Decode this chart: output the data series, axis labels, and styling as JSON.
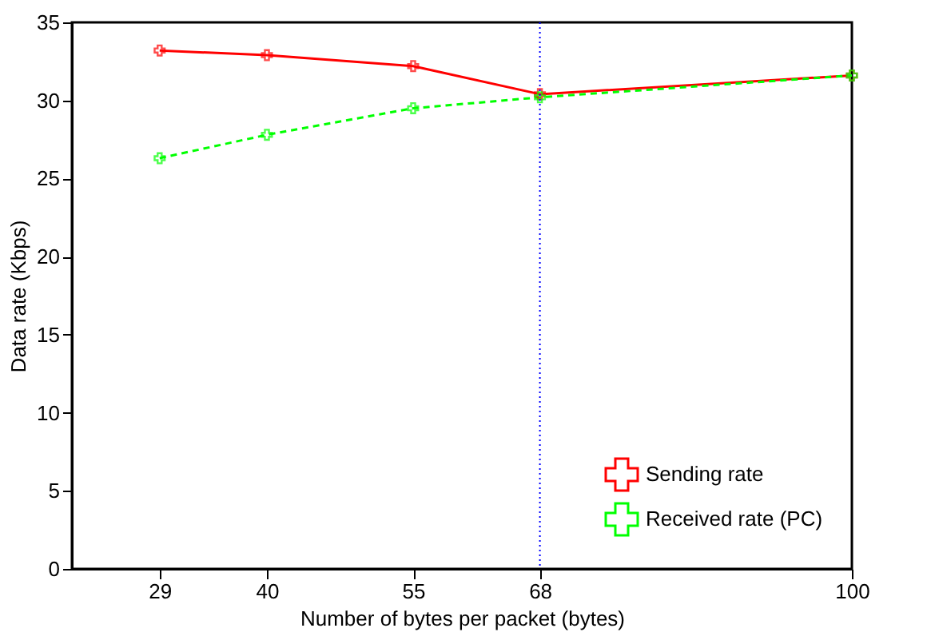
{
  "chart_data": {
    "type": "line",
    "xlabel": "Number of bytes per packet (bytes)",
    "ylabel": "Data rate (Kbps)",
    "x": [
      29,
      40,
      55,
      68,
      100
    ],
    "series": [
      {
        "name": "Sending rate",
        "color": "#ff0000",
        "values": [
          33.2,
          32.9,
          32.2,
          30.4,
          31.6
        ],
        "marker": "cross",
        "line_style": "solid"
      },
      {
        "name": "Received rate (PC)",
        "color": "#00ff00",
        "values": [
          26.3,
          27.8,
          29.5,
          30.2,
          31.6
        ],
        "marker": "cross",
        "line_style": "dashed"
      }
    ],
    "xlim": [
      20,
      100
    ],
    "xticks": [
      29,
      40,
      55,
      68,
      100
    ],
    "ylim": [
      0,
      35
    ],
    "yticks": [
      0,
      5,
      10,
      15,
      20,
      25,
      30,
      35
    ],
    "ref_lines": [
      {
        "axis": "x",
        "value": 68,
        "label": null,
        "color": "#0000ff",
        "line_style": "dotted"
      }
    ],
    "grid": false,
    "legend": "bottom right"
  }
}
